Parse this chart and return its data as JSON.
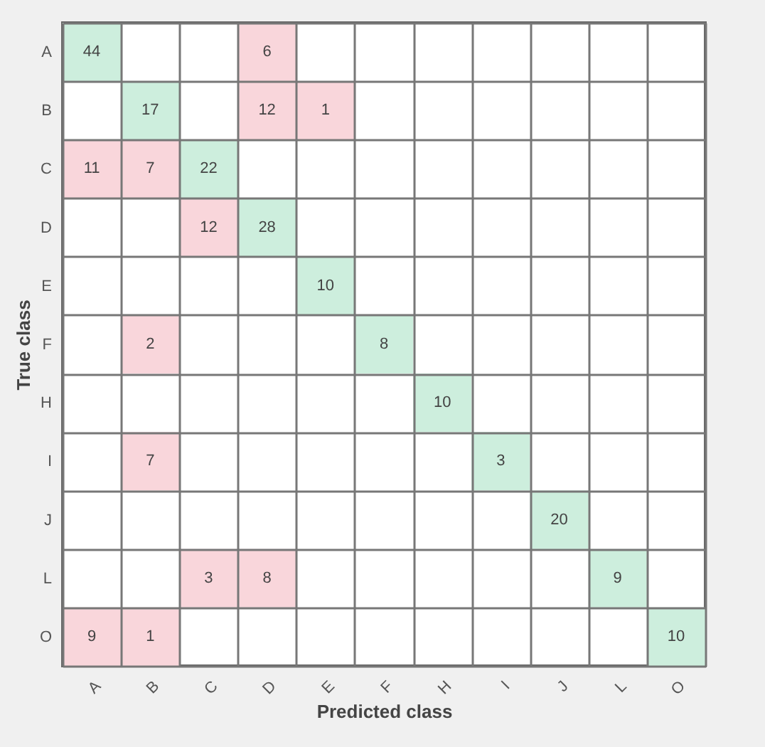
{
  "chart_data": {
    "type": "heatmap",
    "xlabel": "Predicted class",
    "ylabel": "True class",
    "categories": [
      "A",
      "B",
      "C",
      "D",
      "E",
      "F",
      "H",
      "I",
      "J",
      "L",
      "O"
    ],
    "y_categories": [
      "A",
      "B",
      "C",
      "D",
      "E",
      "F",
      "H",
      "I",
      "J",
      "L",
      "O"
    ],
    "cells": [
      [
        44,
        null,
        null,
        6,
        null,
        null,
        null,
        null,
        null,
        null,
        null
      ],
      [
        null,
        17,
        null,
        12,
        1,
        null,
        null,
        null,
        null,
        null,
        null
      ],
      [
        11,
        7,
        22,
        null,
        null,
        null,
        null,
        null,
        null,
        null,
        null
      ],
      [
        null,
        null,
        12,
        28,
        null,
        null,
        null,
        null,
        null,
        null,
        null
      ],
      [
        null,
        null,
        null,
        null,
        10,
        null,
        null,
        null,
        null,
        null,
        null
      ],
      [
        null,
        2,
        null,
        null,
        null,
        8,
        null,
        null,
        null,
        null,
        null
      ],
      [
        null,
        null,
        null,
        null,
        null,
        null,
        10,
        null,
        null,
        null,
        null
      ],
      [
        null,
        7,
        null,
        null,
        null,
        null,
        null,
        3,
        null,
        null,
        null
      ],
      [
        null,
        null,
        null,
        null,
        null,
        null,
        null,
        null,
        20,
        null,
        null
      ],
      [
        null,
        null,
        3,
        8,
        null,
        null,
        null,
        null,
        null,
        9,
        null
      ],
      [
        9,
        1,
        null,
        null,
        null,
        null,
        null,
        null,
        null,
        null,
        10
      ]
    ],
    "colors": [
      [
        "#cdeedd",
        null,
        null,
        "#f9d6db",
        null,
        null,
        null,
        null,
        null,
        null,
        null
      ],
      [
        null,
        "#cdeedd",
        null,
        "#f9d6db",
        "#f9d6db",
        null,
        null,
        null,
        null,
        null,
        null
      ],
      [
        "#f9d6db",
        "#f9d6db",
        "#cdeedd",
        null,
        null,
        null,
        null,
        null,
        null,
        null,
        null
      ],
      [
        null,
        null,
        "#f9d6db",
        "#cdeedd",
        null,
        null,
        null,
        null,
        null,
        null,
        null
      ],
      [
        null,
        null,
        null,
        null,
        "#cdeedd",
        null,
        null,
        null,
        null,
        null,
        null
      ],
      [
        null,
        "#f9d6db",
        null,
        null,
        null,
        "#cdeedd",
        null,
        null,
        null,
        null,
        null
      ],
      [
        null,
        null,
        null,
        null,
        null,
        null,
        "#cdeedd",
        null,
        null,
        null,
        null
      ],
      [
        null,
        "#f9d6db",
        null,
        null,
        null,
        null,
        null,
        "#cdeedd",
        null,
        null,
        null
      ],
      [
        null,
        null,
        null,
        null,
        null,
        null,
        null,
        null,
        "#cdeedd",
        null,
        null
      ],
      [
        null,
        null,
        "#f9d6db",
        "#f9d6db",
        null,
        null,
        null,
        null,
        null,
        "#cdeedd",
        null
      ],
      [
        "#f9d6db",
        "#f9d6db",
        null,
        null,
        null,
        null,
        null,
        null,
        null,
        null,
        "#cdeedd"
      ]
    ],
    "data_labels": true,
    "grid": true
  }
}
